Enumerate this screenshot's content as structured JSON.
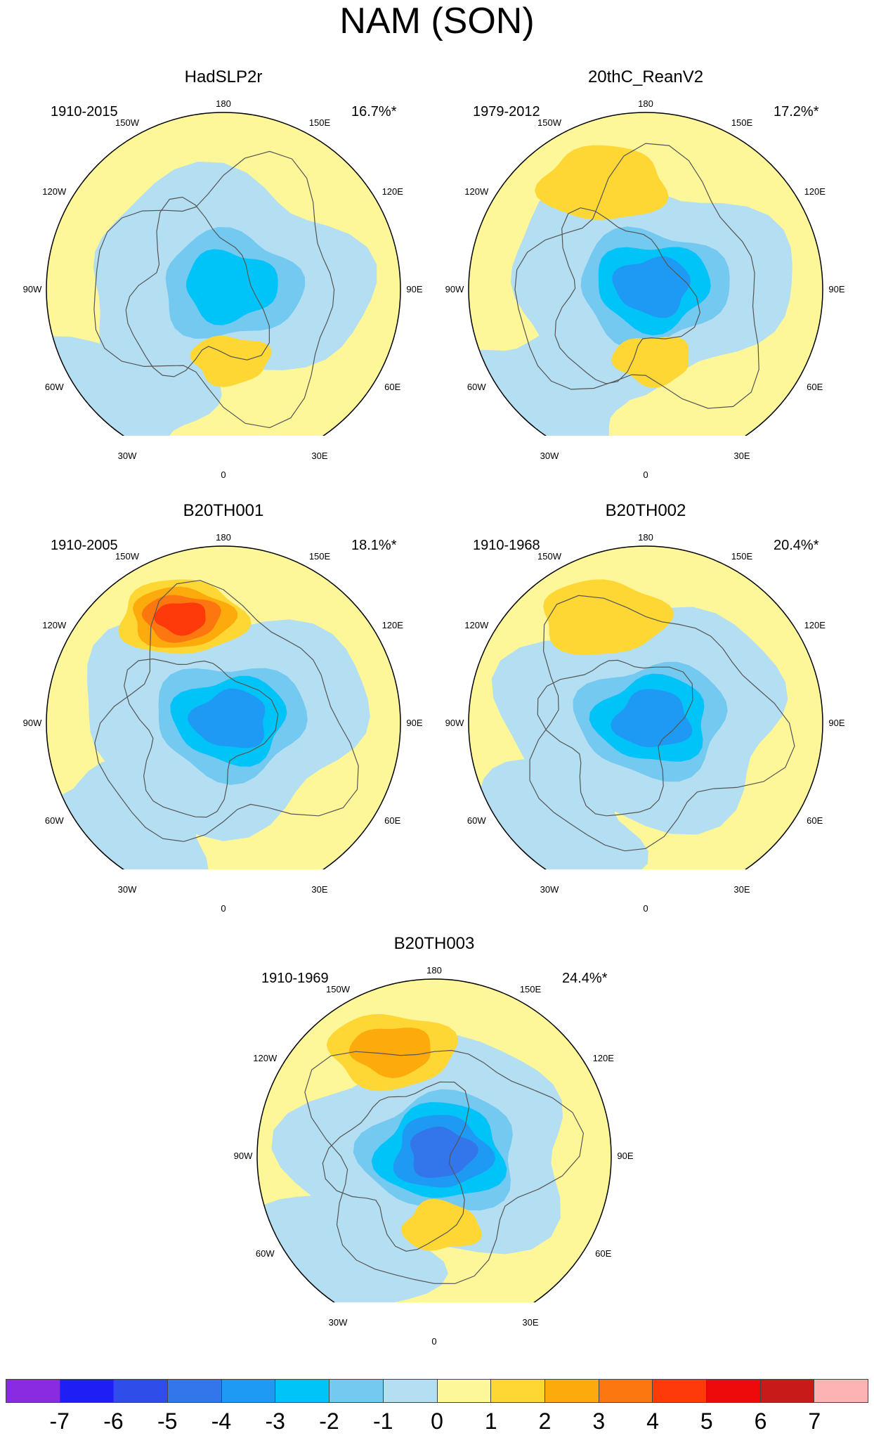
{
  "title": "NAM (SON)",
  "lon_labels": [
    "180",
    "150E",
    "120E",
    "90E",
    "60E",
    "30E",
    "0",
    "30W",
    "60W",
    "90W",
    "120W",
    "150W"
  ],
  "panels": [
    {
      "name": "HadSLP2r",
      "period": "1910-2015",
      "variance": "16.7%*",
      "pattern": {
        "low_center_strength": -3,
        "pacific_high": 0,
        "europe_high": 1
      }
    },
    {
      "name": "20thC_ReanV2",
      "period": "1979-2012",
      "variance": "17.2%*",
      "pattern": {
        "low_center_strength": -4,
        "pacific_high": 1,
        "europe_high": 1
      }
    },
    {
      "name": "B20TH001",
      "period": "1910-2005",
      "variance": "18.1%*",
      "pattern": {
        "low_center_strength": -4,
        "pacific_high": 4,
        "europe_high": 0
      }
    },
    {
      "name": "B20TH002",
      "period": "1910-1968",
      "variance": "20.4%*",
      "pattern": {
        "low_center_strength": -4,
        "pacific_high": 1,
        "europe_high": 0
      }
    },
    {
      "name": "B20TH003",
      "period": "1910-1969",
      "variance": "24.4%*",
      "pattern": {
        "low_center_strength": -5,
        "pacific_high": 2,
        "europe_high": 1
      }
    }
  ],
  "colorbar": {
    "colors": [
      "#8a2be2",
      "#1f1ff5",
      "#2f4de8",
      "#3375ea",
      "#1e9af5",
      "#00c3f7",
      "#73c9f0",
      "#b4def2",
      "#fdf79a",
      "#fed735",
      "#fdab0c",
      "#fd7710",
      "#fe3a0b",
      "#ee0a0a",
      "#c91a1a",
      "#fdb3b4"
    ],
    "tick_labels": [
      "-7",
      "-6",
      "-5",
      "-4",
      "-3",
      "-2",
      "-1",
      "0",
      "1",
      "2",
      "3",
      "4",
      "5",
      "6",
      "7"
    ]
  }
}
